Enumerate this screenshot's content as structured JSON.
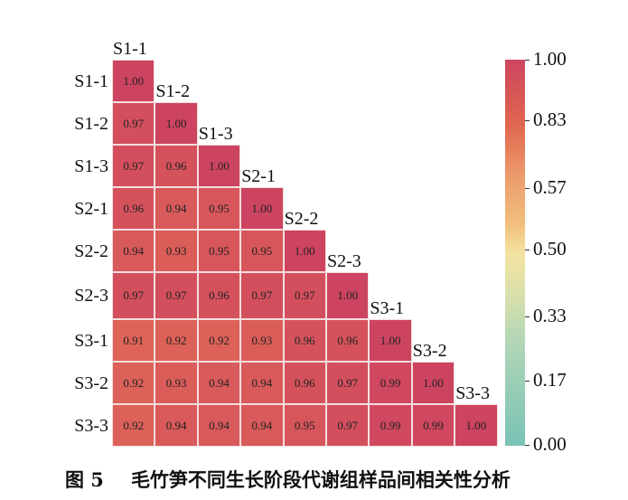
{
  "chart_data": {
    "type": "heatmap",
    "title": "",
    "labels": [
      "S1-1",
      "S1-2",
      "S1-3",
      "S2-1",
      "S2-2",
      "S2-3",
      "S3-1",
      "S3-2",
      "S3-3"
    ],
    "matrix_lower": [
      [
        1.0
      ],
      [
        0.97,
        1.0
      ],
      [
        0.97,
        0.96,
        1.0
      ],
      [
        0.96,
        0.94,
        0.95,
        1.0
      ],
      [
        0.94,
        0.93,
        0.95,
        0.95,
        1.0
      ],
      [
        0.97,
        0.97,
        0.96,
        0.97,
        0.97,
        1.0
      ],
      [
        0.91,
        0.92,
        0.92,
        0.93,
        0.96,
        0.96,
        1.0
      ],
      [
        0.92,
        0.93,
        0.94,
        0.94,
        0.96,
        0.97,
        0.99,
        1.0
      ],
      [
        0.92,
        0.94,
        0.94,
        0.94,
        0.95,
        0.97,
        0.99,
        0.99,
        1.0
      ]
    ],
    "colorbar": {
      "ticks": [
        "1.00",
        "0.83",
        "0.57",
        "0.50",
        "0.33",
        "0.17",
        "0.00"
      ],
      "range": [
        0.0,
        1.0
      ],
      "colors": {
        "high": "#cd4560",
        "mid": "#f4e3a1",
        "low": "#79c3b5"
      }
    },
    "caption": {
      "fig": "图 5",
      "text": "毛竹笋不同生长阶段代谢组样品间相关性分析"
    }
  }
}
